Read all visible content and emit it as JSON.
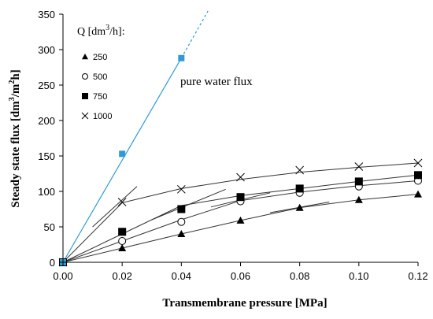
{
  "chart_data": {
    "type": "scatter",
    "xlabel": "Transmembrane pressure [MPa]",
    "ylabel_main": "Steady state flux [dm",
    "ylabel_sup1": "3",
    "ylabel_mid": "/m",
    "ylabel_sup2": "2",
    "ylabel_end": "h]",
    "xlim": [
      0,
      0.12
    ],
    "ylim": [
      0,
      350
    ],
    "x_ticks": [
      "0.00",
      "0.02",
      "0.04",
      "0.06",
      "0.08",
      "0.10",
      "0.12"
    ],
    "y_ticks": [
      "0",
      "50",
      "100",
      "150",
      "200",
      "250",
      "300",
      "350"
    ],
    "grid": false,
    "legend_title_main": "Q [dm",
    "legend_title_sup": "3",
    "legend_title_end": "/h]:",
    "legend_position": "top-left",
    "annotation": "pure water flux",
    "colors": {
      "water": "#2e9bd6",
      "series": "#000000",
      "fit": "#333333"
    },
    "water_series": {
      "x": [
        0,
        0.02,
        0.04
      ],
      "y": [
        0,
        153,
        288
      ],
      "line_solid": [
        [
          0,
          0
        ],
        [
          0.04,
          288
        ]
      ],
      "line_dashed": [
        [
          0.04,
          288
        ],
        [
          0.049,
          355
        ]
      ]
    },
    "series": [
      {
        "name": "250",
        "marker": "triangle",
        "x": [
          0,
          0.02,
          0.04,
          0.06,
          0.08,
          0.1,
          0.12
        ],
        "y": [
          0,
          20,
          40,
          59,
          77,
          88,
          96
        ],
        "curve": [
          [
            0,
            0
          ],
          [
            0.02,
            20
          ],
          [
            0.04,
            40
          ],
          [
            0.06,
            59
          ],
          [
            0.08,
            77
          ],
          [
            0.1,
            88
          ],
          [
            0.12,
            96
          ]
        ],
        "fit_line": [
          [
            0.07,
            70
          ],
          [
            0.09,
            85
          ]
        ]
      },
      {
        "name": "500",
        "marker": "circle",
        "x": [
          0,
          0.02,
          0.04,
          0.06,
          0.08,
          0.1,
          0.12
        ],
        "y": [
          0,
          30,
          57,
          86,
          98,
          107,
          115
        ],
        "curve": [
          [
            0,
            0
          ],
          [
            0.02,
            30
          ],
          [
            0.04,
            60
          ],
          [
            0.06,
            87
          ],
          [
            0.08,
            99
          ],
          [
            0.1,
            108
          ],
          [
            0.12,
            115
          ]
        ],
        "fit_line": [
          [
            0.05,
            78
          ],
          [
            0.07,
            98
          ]
        ]
      },
      {
        "name": "750",
        "marker": "square",
        "x": [
          0,
          0.02,
          0.04,
          0.06,
          0.08,
          0.1,
          0.12
        ],
        "y": [
          0,
          43,
          75,
          92,
          104,
          114,
          123
        ],
        "curve": [
          [
            0,
            0
          ],
          [
            0.02,
            40
          ],
          [
            0.04,
            80
          ],
          [
            0.06,
            94
          ],
          [
            0.08,
            104
          ],
          [
            0.1,
            114
          ],
          [
            0.12,
            123
          ]
        ],
        "fit_line": [
          [
            0.03,
            60
          ],
          [
            0.055,
            103
          ]
        ]
      },
      {
        "name": "1000",
        "marker": "x",
        "x": [
          0,
          0.02,
          0.04,
          0.06,
          0.08,
          0.1,
          0.12
        ],
        "y": [
          0,
          85,
          103,
          120,
          130,
          135,
          140
        ],
        "curve": [
          [
            0,
            0
          ],
          [
            0.02,
            84
          ],
          [
            0.04,
            104
          ],
          [
            0.06,
            117
          ],
          [
            0.08,
            127
          ],
          [
            0.1,
            134
          ],
          [
            0.12,
            140
          ]
        ],
        "fit_line": [
          [
            0.01,
            50
          ],
          [
            0.025,
            107
          ]
        ]
      }
    ]
  }
}
